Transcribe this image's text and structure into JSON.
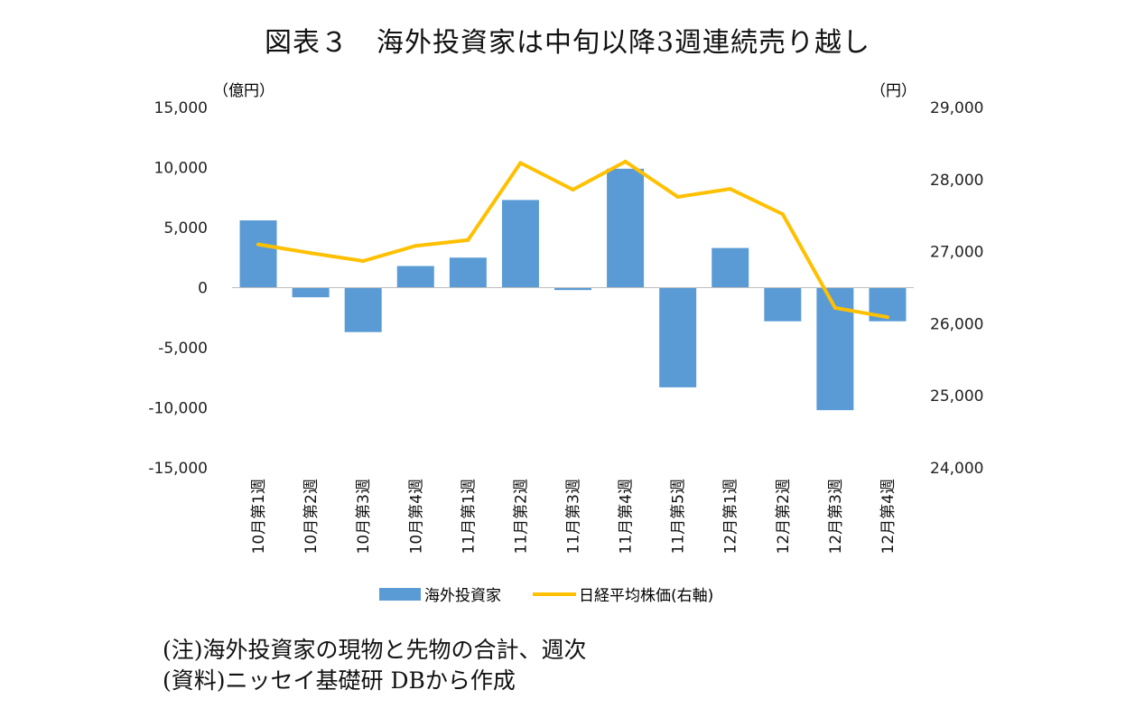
{
  "title": "図表３　海外投資家は中旬以降3週連続売り越し",
  "notes": {
    "note1": "(注)海外投資家の現物と先物の合計、週次",
    "note2": "(資料)ニッセイ基礎研 DBから作成"
  },
  "colors": {
    "bar": "#5b9bd5",
    "line": "#ffc000"
  },
  "chart_data": {
    "type": "bar+line",
    "categories": [
      "10月第1週",
      "10月第2週",
      "10月第3週",
      "10月第4週",
      "11月第1週",
      "11月第2週",
      "11月第3週",
      "11月第4週",
      "11月第5週",
      "12月第1週",
      "12月第2週",
      "12月第3週",
      "12月第4週"
    ],
    "series": [
      {
        "name": "海外投資家",
        "type": "bar",
        "axis": "left",
        "values": [
          5600,
          -800,
          -3700,
          1800,
          2500,
          7300,
          -200,
          9900,
          -8300,
          3300,
          -2800,
          -10200,
          -2800
        ]
      },
      {
        "name": "日経平均株価(右軸)",
        "type": "line",
        "axis": "right",
        "values": [
          27100,
          26980,
          26870,
          27080,
          27160,
          28230,
          27860,
          28250,
          27760,
          27870,
          27520,
          26220,
          26090
        ]
      }
    ],
    "left_axis": {
      "label": "（億円）",
      "range": [
        -15000,
        15000
      ],
      "ticks": [
        "15,000",
        "10,000",
        "5,000",
        "0",
        "-5,000",
        "-10,000",
        "-15,000"
      ]
    },
    "right_axis": {
      "label": "（円）",
      "range": [
        24000,
        29000
      ],
      "ticks": [
        "29,000",
        "28,000",
        "27,000",
        "26,000",
        "25,000",
        "24,000"
      ]
    },
    "legend": {
      "position": "bottom",
      "items": [
        "海外投資家",
        "日経平均株価(右軸)"
      ]
    }
  }
}
